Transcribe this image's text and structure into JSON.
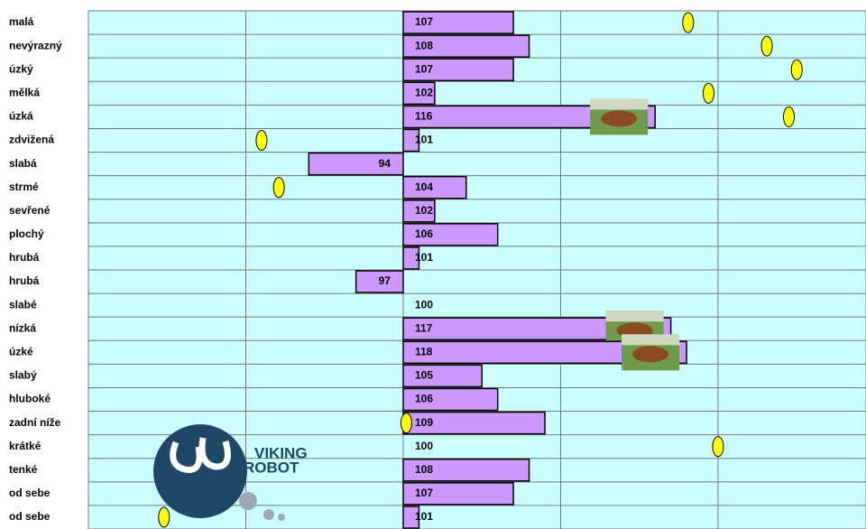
{
  "chart_data": {
    "type": "bar",
    "orientation": "horizontal",
    "categories": [
      "malá",
      "nevýrazný",
      "úzký",
      "mělká",
      "úzká",
      "zdvižená",
      "slabá",
      "strmé",
      "sevřené",
      "plochý",
      "hrubá",
      "hrubá",
      "slabé",
      "nízká",
      "úzké",
      "slabý",
      "hluboké",
      "zadní níže",
      "krátké",
      "tenké",
      "od sebe",
      "od sebe"
    ],
    "base": 100,
    "series": [
      {
        "color": "#cc99ff",
        "values": [
          107,
          108,
          107,
          102,
          116,
          101,
          94,
          104,
          102,
          106,
          101,
          97,
          100,
          117,
          118,
          105,
          106,
          109,
          100,
          108,
          107,
          101
        ]
      },
      {
        "color": "#ffff00",
        "marker": "ellipse",
        "values": [
          118.1,
          123.1,
          125,
          119.4,
          124.5,
          91,
          null,
          92.1,
          null,
          null,
          null,
          null,
          null,
          null,
          null,
          null,
          null,
          100.2,
          120,
          null,
          null,
          84.8
        ]
      }
    ],
    "xlim": [
      80,
      129.4
    ],
    "xticks": [
      80,
      90,
      100,
      110,
      120
    ],
    "grid": true,
    "background": "#ccffff",
    "logo": {
      "line1": "VIKING",
      "line2": "ROBOT"
    }
  }
}
